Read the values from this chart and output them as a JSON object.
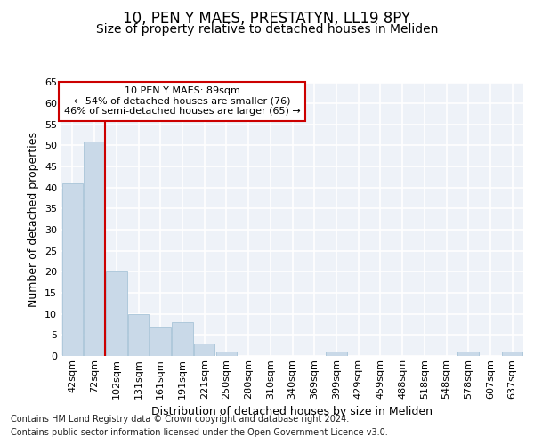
{
  "title1": "10, PEN Y MAES, PRESTATYN, LL19 8PY",
  "title2": "Size of property relative to detached houses in Meliden",
  "xlabel": "Distribution of detached houses by size in Meliden",
  "ylabel": "Number of detached properties",
  "categories": [
    "42sqm",
    "72sqm",
    "102sqm",
    "131sqm",
    "161sqm",
    "191sqm",
    "221sqm",
    "250sqm",
    "280sqm",
    "310sqm",
    "340sqm",
    "369sqm",
    "399sqm",
    "429sqm",
    "459sqm",
    "488sqm",
    "518sqm",
    "548sqm",
    "578sqm",
    "607sqm",
    "637sqm"
  ],
  "values": [
    41,
    51,
    20,
    10,
    7,
    8,
    3,
    1,
    0,
    0,
    0,
    0,
    1,
    0,
    0,
    0,
    0,
    0,
    1,
    0,
    1
  ],
  "bar_color": "#c9d9e8",
  "bar_edge_color": "#a8c4d8",
  "vline_color": "#cc0000",
  "annotation_line1": "10 PEN Y MAES: 89sqm",
  "annotation_line2": "← 54% of detached houses are smaller (76)",
  "annotation_line3": "46% of semi-detached houses are larger (65) →",
  "annotation_box_facecolor": "#ffffff",
  "annotation_box_edgecolor": "#cc0000",
  "ylim": [
    0,
    65
  ],
  "yticks": [
    0,
    5,
    10,
    15,
    20,
    25,
    30,
    35,
    40,
    45,
    50,
    55,
    60,
    65
  ],
  "background_color": "#eef2f8",
  "grid_color": "#ffffff",
  "footer1": "Contains HM Land Registry data © Crown copyright and database right 2024.",
  "footer2": "Contains public sector information licensed under the Open Government Licence v3.0.",
  "title1_fontsize": 12,
  "title2_fontsize": 10,
  "xlabel_fontsize": 9,
  "ylabel_fontsize": 9,
  "tick_fontsize": 8,
  "annotation_fontsize": 8,
  "footer_fontsize": 7
}
